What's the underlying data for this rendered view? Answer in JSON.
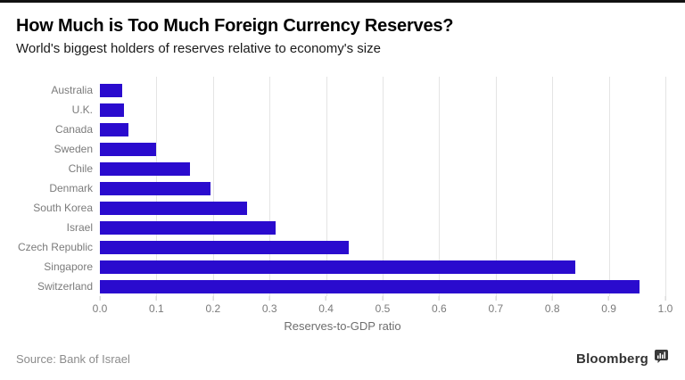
{
  "header": {
    "title": "How Much is Too Much Foreign Currency Reserves?",
    "subtitle": "World's biggest holders of reserves relative to economy's size"
  },
  "footer": {
    "source": "Source: Bank of Israel",
    "brand": "Bloomberg",
    "brand_icon": "bar-chart-bubble-icon"
  },
  "chart_data": {
    "type": "bar",
    "orientation": "horizontal",
    "title": "How Much is Too Much Foreign Currency Reserves?",
    "subtitle": "World's biggest holders of reserves relative to economy's size",
    "categories": [
      "Australia",
      "U.K.",
      "Canada",
      "Sweden",
      "Chile",
      "Denmark",
      "South Korea",
      "Israel",
      "Czech Republic",
      "Singapore",
      "Switzerland"
    ],
    "values": [
      0.04,
      0.042,
      0.05,
      0.1,
      0.16,
      0.195,
      0.26,
      0.31,
      0.44,
      0.84,
      0.955
    ],
    "xlabel": "Reserves-to-GDP ratio",
    "ylabel": "",
    "xlim": [
      0.0,
      1.0
    ],
    "x_ticks": [
      0,
      0.1,
      0.2,
      0.3,
      0.4,
      0.5,
      0.6,
      0.7,
      0.8,
      0.9,
      1.0
    ],
    "x_tick_labels": [
      "0.0",
      "0.1",
      "0.2",
      "0.3",
      "0.4",
      "0.5",
      "0.6",
      "0.7",
      "0.8",
      "0.9",
      "1.0"
    ],
    "grid": "vertical-light",
    "legend": "none",
    "colors": {
      "bar": "#2a0bce",
      "gridline": "#e4e4e4",
      "tick_mark": "#c9c9c9",
      "axis_text": "#7b7b7b",
      "title_text": "#000000",
      "subtitle_text": "#1a1a1a",
      "source_text": "#8c8c8c",
      "brand_text": "#333333",
      "top_rule": "#111111"
    }
  }
}
